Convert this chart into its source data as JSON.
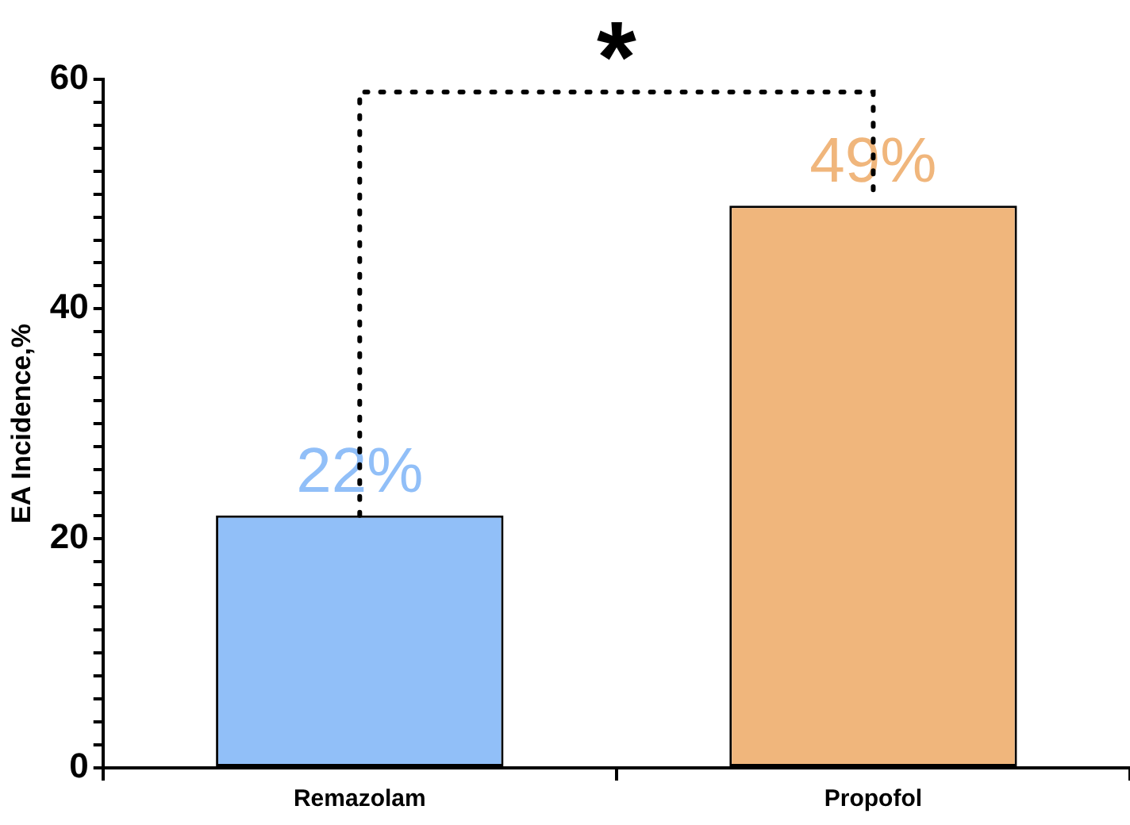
{
  "chart_data": {
    "type": "bar",
    "ylabel": "EA Incidence,%",
    "categories": [
      "Remazolam",
      "Propofol"
    ],
    "values": [
      22,
      49
    ],
    "colors": [
      "#91bff8",
      "#f0b67c"
    ],
    "value_labels": [
      "22%",
      "49%"
    ],
    "ylim": [
      0,
      60
    ],
    "yticks": [
      0,
      {
        "value": 2,
        "label": null
      },
      {
        "value": 4,
        "label": null
      },
      {
        "value": 6,
        "label": null
      },
      {
        "value": 8,
        "label": null
      },
      {
        "value": 10,
        "label": null
      },
      {
        "value": 12,
        "label": null
      },
      {
        "value": 14,
        "label": null
      },
      {
        "value": 16,
        "label": null
      },
      {
        "value": 18,
        "label": null
      },
      20,
      {
        "value": 22,
        "label": null
      },
      {
        "value": 24,
        "label": null
      },
      {
        "value": 26,
        "label": null
      },
      {
        "value": 28,
        "label": null
      },
      {
        "value": 30,
        "label": null
      },
      {
        "value": 32,
        "label": null
      },
      {
        "value": 34,
        "label": null
      },
      {
        "value": 36,
        "label": null
      },
      {
        "value": 38,
        "label": null
      },
      40,
      {
        "value": 42,
        "label": null
      },
      {
        "value": 44,
        "label": null
      },
      {
        "value": 46,
        "label": null
      },
      {
        "value": 48,
        "label": null
      },
      {
        "value": 50,
        "label": null
      },
      {
        "value": 52,
        "label": null
      },
      {
        "value": 54,
        "label": null
      },
      {
        "value": 56,
        "label": null
      },
      {
        "value": 58,
        "label": null
      },
      60
    ],
    "annotations": [
      "*"
    ],
    "grid": false,
    "legend": false
  }
}
